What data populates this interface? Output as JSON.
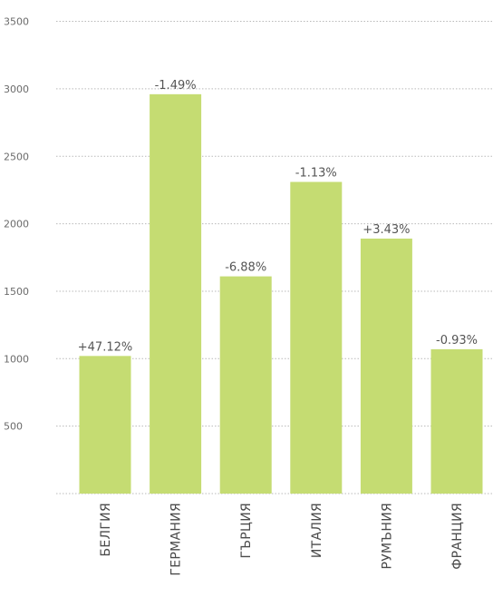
{
  "chart_data": {
    "type": "bar",
    "categories": [
      "БЕЛГИЯ",
      "ГЕРМАНИЯ",
      "ГЪРЦИЯ",
      "ИТАЛИЯ",
      "РУМЪНИЯ",
      "ФРАНЦИЯ"
    ],
    "values": [
      1020,
      2960,
      1610,
      2310,
      1890,
      1070
    ],
    "data_labels": [
      "+47.12%",
      "-1.49%",
      "-6.88%",
      "-1.13%",
      "+3.43%",
      "-0.93%"
    ],
    "y_ticks": [
      "500",
      "1000",
      "1500",
      "2000",
      "2500",
      "3000",
      "3500"
    ],
    "ylim": [
      0,
      3500
    ],
    "grid": "horizontal-dotted",
    "colors": {
      "bar": "#c5dc72",
      "grid": "#b9b9b9",
      "tick_text": "#6b6b6b",
      "label_text": "#555555"
    }
  }
}
